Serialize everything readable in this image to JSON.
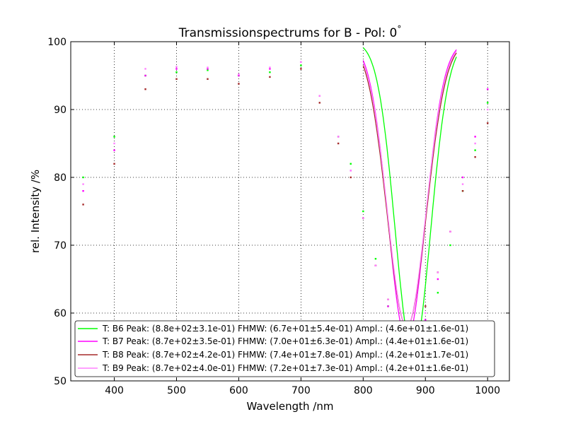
{
  "chart_data": {
    "type": "scatter",
    "title": "Transmissionspectrums for B - Pol: 0",
    "title_degree": "°",
    "xlabel": "Wavelength  /nm",
    "ylabel": "rel. Intensity  /%",
    "xlim": [
      330,
      1035
    ],
    "ylim": [
      50,
      100
    ],
    "xticks": [
      400,
      500,
      600,
      700,
      800,
      900,
      1000
    ],
    "yticks": [
      50,
      60,
      70,
      80,
      90,
      100
    ],
    "grid": true,
    "legend_position": "lower-right",
    "series": [
      {
        "name": "T: B6 Peak: (8.8e+02±3.1e-01)  FHMW: (6.7e+01±5.4e-01)  Ampl.: (4.6e+01±1.6e-01)",
        "color": "#00ff00",
        "x": [
          350,
          400,
          450,
          500,
          550,
          600,
          650,
          700,
          730,
          760,
          780,
          800,
          820,
          840,
          860,
          880,
          900,
          920,
          940,
          960,
          980,
          1000
        ],
        "y": [
          80,
          86,
          95,
          95.5,
          95.8,
          95,
          95.5,
          96.5,
          92,
          86,
          82,
          75,
          68,
          61,
          56,
          54,
          57,
          63,
          70,
          78,
          84,
          91
        ],
        "fit": {
          "x0": 880,
          "fwhm": 67,
          "amplitude": 46,
          "baseline": 100,
          "range": [
            800,
            950
          ]
        }
      },
      {
        "name": "T: B7 Peak: (8.7e+02±3.5e-01)  FHMW: (7.0e+01±6.3e-01)  Ampl.: (4.4e+01±1.6e-01)",
        "color": "#ff00ff",
        "x": [
          350,
          400,
          450,
          500,
          550,
          600,
          650,
          700,
          730,
          760,
          780,
          800,
          820,
          840,
          860,
          880,
          900,
          920,
          940,
          960,
          980,
          1000
        ],
        "y": [
          78,
          84,
          95,
          96,
          96,
          95,
          96,
          97,
          92,
          86,
          81,
          74,
          67,
          61,
          57,
          56,
          59,
          65,
          72,
          80,
          86,
          93
        ],
        "fit": {
          "x0": 870,
          "fwhm": 70,
          "amplitude": 44,
          "baseline": 100,
          "range": [
            800,
            950
          ]
        }
      },
      {
        "name": "T: B8 Peak: (8.7e+02±4.2e-01)  FHMW: (7.4e+01±7.8e-01)  Ampl.: (4.2e+01±1.7e-01)",
        "color": "#a52a2a",
        "x": [
          350,
          400,
          450,
          500,
          550,
          600,
          650,
          700,
          730,
          760,
          780,
          800,
          820,
          840,
          860,
          880,
          900,
          920,
          940,
          960,
          980,
          1000
        ],
        "y": [
          76,
          82,
          93,
          94.5,
          94.5,
          93.8,
          94.8,
          96,
          91,
          85,
          80,
          74,
          67,
          62,
          58,
          58,
          61,
          66,
          72,
          78,
          83,
          88
        ],
        "fit": {
          "x0": 870,
          "fwhm": 74,
          "amplitude": 42,
          "baseline": 100,
          "range": [
            800,
            950
          ]
        }
      },
      {
        "name": "T: B9 Peak: (8.7e+02±4.0e-01)  FHMW: (7.2e+01±7.3e-01)  Ampl.: (4.2e+01±1.6e-01)",
        "color": "#ff80ff",
        "x": [
          350,
          400,
          450,
          500,
          550,
          600,
          650,
          700,
          730,
          760,
          780,
          800,
          820,
          840,
          860,
          880,
          900,
          920,
          940,
          960,
          980,
          1000
        ],
        "y": [
          79,
          85,
          96,
          96.3,
          96.2,
          95.2,
          96.2,
          97,
          92,
          86,
          81,
          74,
          67,
          62,
          58,
          57,
          60,
          66,
          72,
          79,
          85,
          90
        ],
        "fit": {
          "x0": 870,
          "fwhm": 72,
          "amplitude": 42,
          "baseline": 100,
          "range": [
            800,
            950
          ]
        }
      }
    ]
  }
}
